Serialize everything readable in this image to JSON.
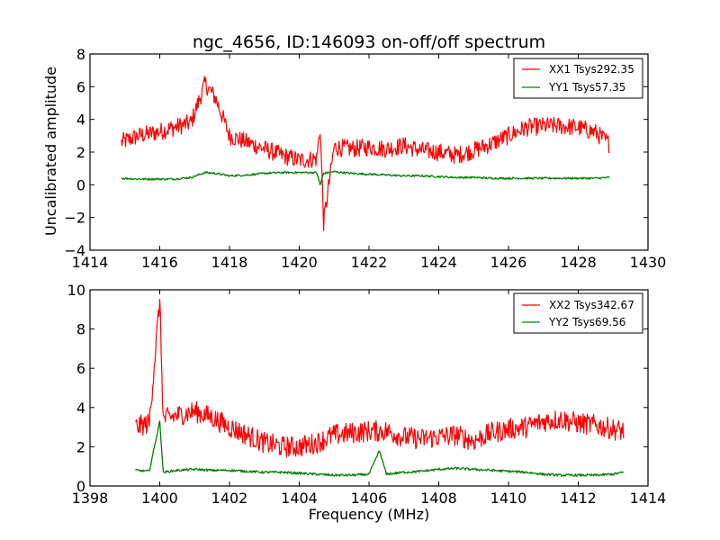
{
  "chart_data": [
    {
      "type": "line",
      "title": "ngc_4656, ID:146093 on-off/off spectrum",
      "xlabel": "",
      "ylabel": "Uncalibrated amplitude",
      "xlim": [
        1414,
        1430
      ],
      "ylim": [
        -4,
        8
      ],
      "xticks": [
        "1414",
        "1416",
        "1418",
        "1420",
        "1422",
        "1424",
        "1426",
        "1428",
        "1430"
      ],
      "yticks": [
        "−4",
        "−2",
        "0",
        "2",
        "4",
        "6",
        "8"
      ],
      "xtick_values": [
        1414,
        1416,
        1418,
        1420,
        1422,
        1424,
        1426,
        1428,
        1430
      ],
      "ytick_values": [
        -4,
        -2,
        0,
        2,
        4,
        6,
        8
      ],
      "grid": false,
      "legend_position": "top-right",
      "x": [
        1414.9,
        1415.4,
        1415.9,
        1416.4,
        1416.9,
        1417.3,
        1417.6,
        1418.0,
        1418.5,
        1419.0,
        1419.5,
        1420.0,
        1420.5,
        1420.6,
        1420.7,
        1421.0,
        1421.5,
        1422.0,
        1422.5,
        1423.0,
        1423.5,
        1424.0,
        1424.5,
        1425.0,
        1425.5,
        1426.0,
        1426.5,
        1427.0,
        1427.5,
        1428.0,
        1428.5,
        1428.9
      ],
      "series": [
        {
          "name": "XX1 Tsys292.35",
          "color": "#ff0000",
          "values": [
            2.6,
            3.0,
            3.2,
            3.5,
            3.8,
            6.2,
            5.3,
            3.0,
            2.6,
            2.2,
            1.8,
            1.5,
            1.6,
            3.5,
            -2.3,
            2.3,
            2.2,
            2.3,
            2.2,
            2.4,
            2.1,
            2.0,
            1.8,
            2.1,
            2.5,
            3.0,
            3.5,
            3.6,
            3.6,
            3.5,
            3.2,
            2.5
          ]
        },
        {
          "name": "YY1 Tsys57.35",
          "color": "#008000",
          "values": [
            0.4,
            0.35,
            0.35,
            0.35,
            0.45,
            0.75,
            0.7,
            0.55,
            0.6,
            0.7,
            0.75,
            0.75,
            0.75,
            0.0,
            0.7,
            0.8,
            0.7,
            0.65,
            0.6,
            0.55,
            0.55,
            0.5,
            0.45,
            0.45,
            0.4,
            0.4,
            0.4,
            0.4,
            0.4,
            0.4,
            0.4,
            0.45
          ]
        }
      ]
    },
    {
      "type": "line",
      "title": "",
      "xlabel": "Frequency (MHz)",
      "ylabel": "",
      "xlim": [
        1398,
        1414
      ],
      "ylim": [
        0,
        10
      ],
      "xticks": [
        "1398",
        "1400",
        "1402",
        "1404",
        "1406",
        "1408",
        "1410",
        "1412",
        "1414"
      ],
      "yticks": [
        "0",
        "2",
        "4",
        "6",
        "8",
        "10"
      ],
      "xtick_values": [
        1398,
        1400,
        1402,
        1404,
        1406,
        1408,
        1410,
        1412,
        1414
      ],
      "ytick_values": [
        0,
        2,
        4,
        6,
        8,
        10
      ],
      "grid": false,
      "legend_position": "top-right",
      "x": [
        1399.3,
        1399.7,
        1400.0,
        1400.1,
        1400.5,
        1401.0,
        1401.5,
        1402.0,
        1402.5,
        1403.0,
        1403.5,
        1404.0,
        1404.5,
        1405.0,
        1405.5,
        1406.0,
        1406.3,
        1406.5,
        1407.0,
        1407.5,
        1408.0,
        1408.5,
        1409.0,
        1409.5,
        1410.0,
        1410.5,
        1411.0,
        1411.5,
        1412.0,
        1412.5,
        1413.0,
        1413.3
      ],
      "series": [
        {
          "name": "XX2 Tsys342.67",
          "color": "#ff0000",
          "values": [
            3.0,
            3.2,
            9.5,
            3.4,
            3.6,
            3.8,
            3.5,
            3.0,
            2.6,
            2.2,
            2.0,
            2.0,
            2.2,
            2.6,
            2.7,
            2.8,
            2.8,
            2.8,
            2.5,
            2.4,
            2.5,
            2.6,
            2.3,
            2.7,
            2.9,
            3.0,
            3.3,
            3.4,
            3.2,
            3.1,
            2.9,
            2.8
          ]
        },
        {
          "name": "YY2 Tsys69.56",
          "color": "#008000",
          "values": [
            0.8,
            0.75,
            3.3,
            0.7,
            0.8,
            0.85,
            0.8,
            0.8,
            0.75,
            0.7,
            0.7,
            0.65,
            0.6,
            0.55,
            0.55,
            0.6,
            1.8,
            0.6,
            0.7,
            0.75,
            0.85,
            0.9,
            0.85,
            0.8,
            0.75,
            0.7,
            0.6,
            0.55,
            0.55,
            0.55,
            0.6,
            0.7
          ]
        }
      ]
    }
  ]
}
